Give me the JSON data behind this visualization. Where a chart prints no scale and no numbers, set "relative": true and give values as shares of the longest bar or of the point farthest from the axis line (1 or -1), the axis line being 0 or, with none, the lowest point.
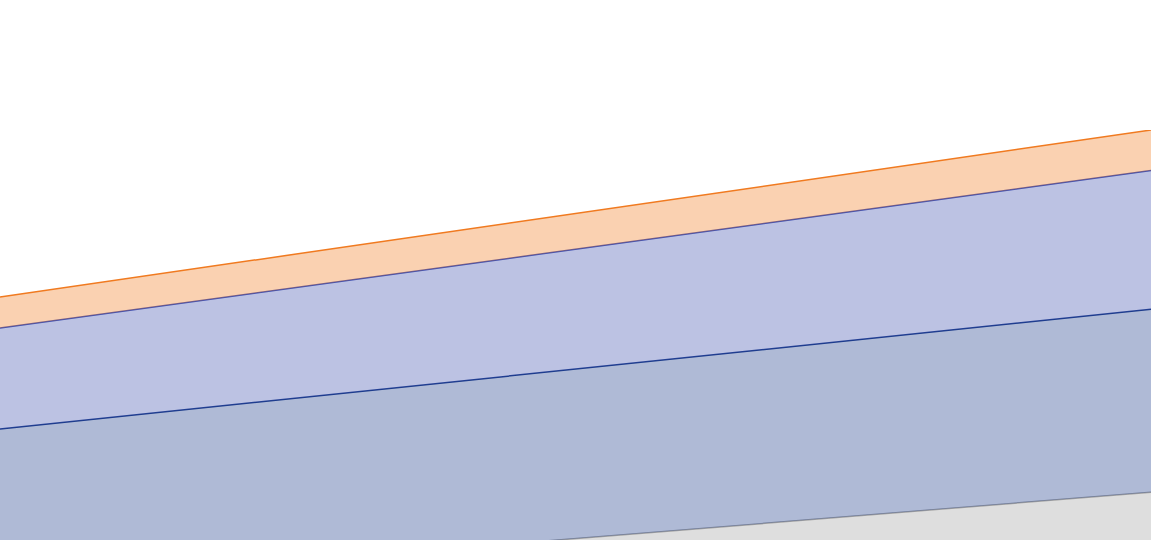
{
  "chart_data": {
    "type": "area",
    "relative": true,
    "stacked": true,
    "categories": [
      null,
      null
    ],
    "series": [
      {
        "color": "#a0a0a0",
        "values": [
          0,
          0.204
        ]
      },
      {
        "color": "#1a3a8a",
        "values": [
          0.343,
          0.402
        ]
      },
      {
        "color": "#4050b0",
        "values": [
          0.222,
          0.305
        ]
      },
      {
        "color": "#f07a20",
        "values": [
          0.068,
          0.089
        ]
      }
    ]
  }
}
